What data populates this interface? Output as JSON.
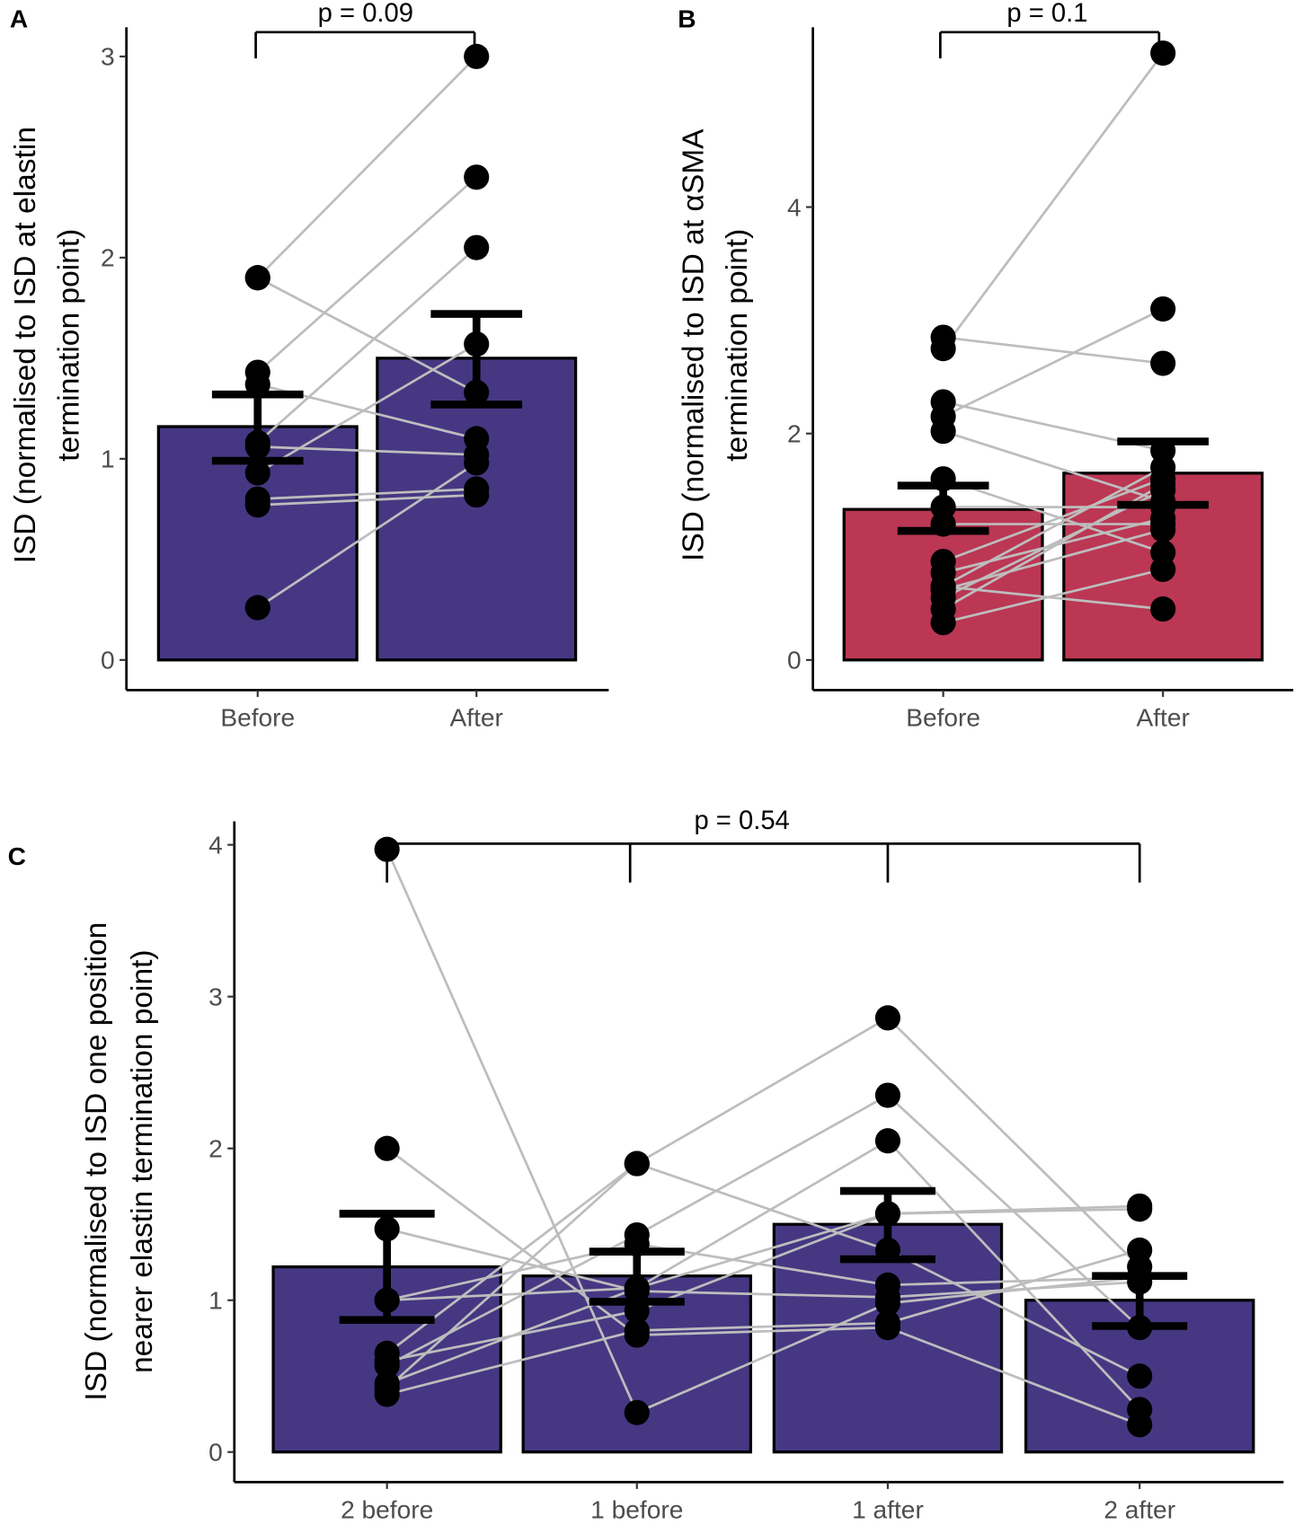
{
  "chart_data": [
    {
      "panel": "A",
      "type": "bar",
      "categories": [
        "Before",
        "After"
      ],
      "ylabel": [
        "ISD (normalised to ISD at elastin",
        "termination point)"
      ],
      "ylim": [
        0,
        3
      ],
      "yticks": [
        "0",
        "1",
        "2",
        "3"
      ],
      "bar_color": "#463783",
      "bars": [
        {
          "mean": 1.16,
          "err_low": 0.99,
          "err_high": 1.32
        },
        {
          "mean": 1.5,
          "err_low": 1.27,
          "err_high": 1.72
        }
      ],
      "subjects": [
        [
          1.9,
          3.0
        ],
        [
          1.9,
          1.33
        ],
        [
          1.43,
          2.4
        ],
        [
          1.08,
          2.05
        ],
        [
          0.93,
          1.57
        ],
        [
          1.37,
          1.1
        ],
        [
          1.06,
          1.02
        ],
        [
          0.8,
          0.85
        ],
        [
          0.77,
          0.82
        ],
        [
          0.26,
          0.98
        ]
      ],
      "p_label": "p = 0.09"
    },
    {
      "panel": "B",
      "type": "bar",
      "categories": [
        "Before",
        "After"
      ],
      "ylabel": [
        "ISD (normalised to ISD at αSMA",
        "termination point)"
      ],
      "ylim": [
        0,
        5.4
      ],
      "yticks": [
        "0",
        "2",
        "4"
      ],
      "bar_color": "#bb3754",
      "bars": [
        {
          "mean": 1.33,
          "err_low": 1.14,
          "err_high": 1.54
        },
        {
          "mean": 1.65,
          "err_low": 1.37,
          "err_high": 1.93
        }
      ],
      "subjects": [
        [
          2.75,
          5.36
        ],
        [
          2.85,
          2.62
        ],
        [
          2.15,
          3.1
        ],
        [
          2.28,
          1.85
        ],
        [
          2.02,
          1.4
        ],
        [
          1.6,
          0.95
        ],
        [
          1.35,
          1.35
        ],
        [
          1.2,
          1.2
        ],
        [
          0.87,
          1.6
        ],
        [
          0.77,
          1.25
        ],
        [
          0.65,
          1.7
        ],
        [
          0.62,
          1.15
        ],
        [
          0.65,
          0.45
        ],
        [
          0.55,
          1.5
        ],
        [
          0.45,
          1.55
        ],
        [
          0.33,
          0.8
        ]
      ],
      "p_label": "p = 0.1"
    },
    {
      "panel": "C",
      "type": "bar",
      "categories": [
        "2 before",
        "1 before",
        "1 after",
        "2 after"
      ],
      "ylabel": [
        "ISD (normalised to ISD one position",
        "nearer elastin termination point)"
      ],
      "ylim": [
        0,
        4
      ],
      "yticks": [
        "0",
        "1",
        "2",
        "3",
        "4"
      ],
      "bar_color": "#463783",
      "bars": [
        {
          "mean": 1.22,
          "err_low": 0.87,
          "err_high": 1.57
        },
        {
          "mean": 1.16,
          "err_low": 0.99,
          "err_high": 1.32
        },
        {
          "mean": 1.5,
          "err_low": 1.27,
          "err_high": 1.72
        },
        {
          "mean": 1.0,
          "err_low": 0.83,
          "err_high": 1.16
        }
      ],
      "subjects": [
        [
          3.97,
          0.26,
          0.98,
          1.15
        ],
        [
          2.0,
          0.77,
          0.82,
          0.18
        ],
        [
          1.47,
          1.06,
          1.02,
          1.12
        ],
        [
          1.0,
          1.37,
          1.1,
          1.15
        ],
        [
          1.0,
          1.08,
          2.05,
          0.28
        ],
        [
          0.65,
          1.9,
          1.33,
          0.5
        ],
        [
          0.6,
          0.93,
          1.57,
          1.6
        ],
        [
          0.57,
          1.43,
          2.35,
          0.82
        ],
        [
          0.42,
          1.9,
          2.86,
          1.22
        ],
        [
          0.38,
          0.8,
          0.85,
          1.33
        ],
        [
          0.45,
          1.08,
          1.57,
          1.62
        ]
      ],
      "p_label": "p = 0.54"
    }
  ]
}
